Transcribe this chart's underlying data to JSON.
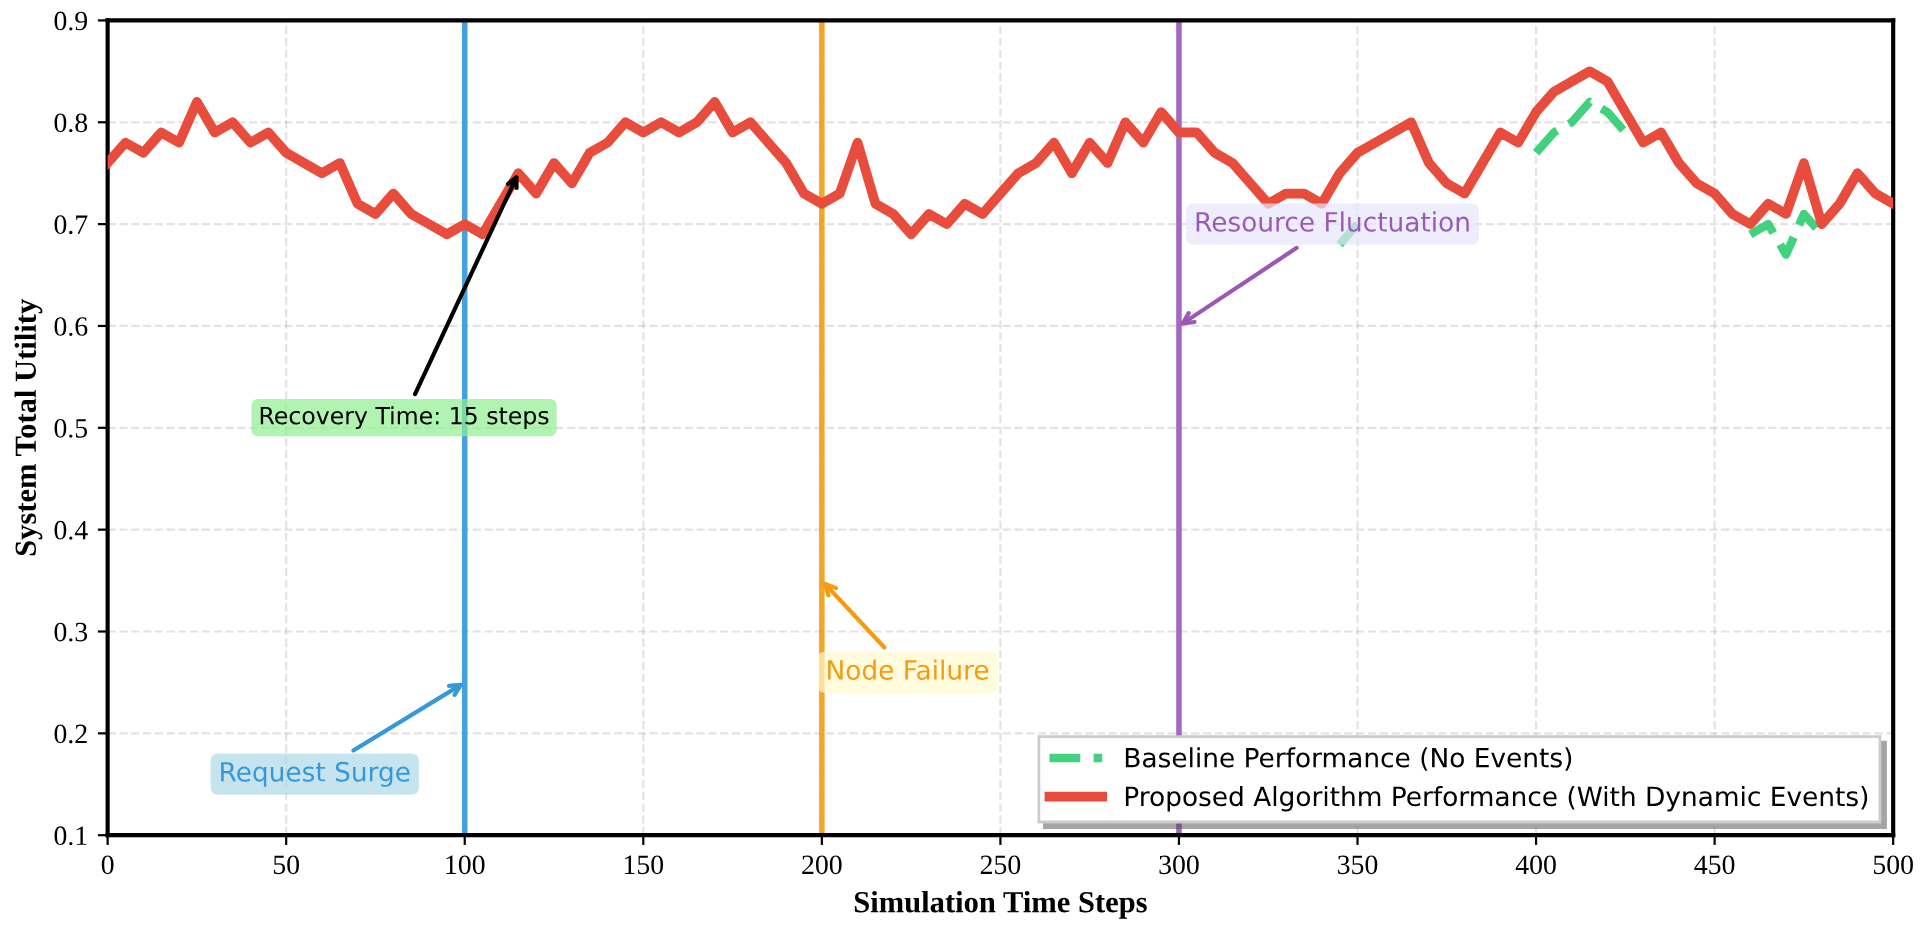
{
  "chart_data": {
    "type": "line",
    "xlabel": "Simulation Time Steps",
    "ylabel": "System Total Utility",
    "x": [
      0,
      5,
      10,
      15,
      20,
      25,
      30,
      35,
      40,
      45,
      50,
      55,
      60,
      65,
      70,
      75,
      80,
      85,
      90,
      95,
      100,
      105,
      110,
      115,
      120,
      125,
      130,
      135,
      140,
      145,
      150,
      155,
      160,
      165,
      170,
      175,
      180,
      185,
      190,
      195,
      200,
      205,
      210,
      215,
      220,
      225,
      230,
      235,
      240,
      245,
      250,
      255,
      260,
      265,
      270,
      275,
      280,
      285,
      290,
      295,
      300,
      305,
      310,
      315,
      320,
      325,
      330,
      335,
      340,
      345,
      350,
      355,
      360,
      365,
      370,
      375,
      380,
      385,
      390,
      395,
      400,
      405,
      410,
      415,
      420,
      425,
      430,
      435,
      440,
      445,
      450,
      455,
      460,
      465,
      470,
      475,
      480,
      485,
      490,
      495,
      500
    ],
    "series": [
      {
        "name": "Baseline Performance (No Events)",
        "color": "#2ecc71",
        "line_style": "dashed",
        "values": [
          null,
          null,
          null,
          null,
          null,
          null,
          null,
          null,
          null,
          null,
          null,
          null,
          null,
          null,
          null,
          null,
          null,
          null,
          null,
          null,
          null,
          null,
          null,
          null,
          null,
          null,
          null,
          null,
          null,
          null,
          null,
          null,
          null,
          null,
          null,
          null,
          null,
          null,
          null,
          null,
          null,
          null,
          null,
          null,
          null,
          null,
          null,
          null,
          null,
          null,
          null,
          null,
          null,
          null,
          null,
          null,
          null,
          null,
          null,
          null,
          null,
          null,
          null,
          null,
          null,
          null,
          null,
          null,
          null,
          0.68,
          0.7,
          null,
          null,
          null,
          null,
          null,
          null,
          null,
          null,
          null,
          0.77,
          0.79,
          0.8,
          0.82,
          0.81,
          0.79,
          null,
          null,
          null,
          null,
          null,
          null,
          0.69,
          0.7,
          0.67,
          0.71,
          0.69,
          null,
          null,
          null,
          null
        ]
      },
      {
        "name": "Proposed Algorithm Performance (With Dynamic Events)",
        "color": "#e74c3c",
        "line_style": "solid",
        "values": [
          0.76,
          0.78,
          0.77,
          0.79,
          0.78,
          0.82,
          0.79,
          0.8,
          0.78,
          0.79,
          0.77,
          0.76,
          0.75,
          0.76,
          0.72,
          0.71,
          0.73,
          0.71,
          0.7,
          0.69,
          0.7,
          0.69,
          0.72,
          0.75,
          0.73,
          0.76,
          0.74,
          0.77,
          0.78,
          0.8,
          0.79,
          0.8,
          0.79,
          0.8,
          0.82,
          0.79,
          0.8,
          0.78,
          0.76,
          0.73,
          0.72,
          0.73,
          0.78,
          0.72,
          0.71,
          0.69,
          0.71,
          0.7,
          0.72,
          0.71,
          0.73,
          0.75,
          0.76,
          0.78,
          0.75,
          0.78,
          0.76,
          0.8,
          0.78,
          0.81,
          0.79,
          0.79,
          0.77,
          0.76,
          0.74,
          0.72,
          0.73,
          0.73,
          0.72,
          0.75,
          0.77,
          0.78,
          0.79,
          0.8,
          0.76,
          0.74,
          0.73,
          0.76,
          0.79,
          0.78,
          0.81,
          0.83,
          0.84,
          0.85,
          0.84,
          0.81,
          0.78,
          0.79,
          0.76,
          0.74,
          0.73,
          0.71,
          0.7,
          0.72,
          0.71,
          0.76,
          0.7,
          0.72,
          0.75,
          0.73,
          0.72
        ]
      }
    ],
    "xlim": [
      0,
      500
    ],
    "xticks": [
      0,
      50,
      100,
      150,
      200,
      250,
      300,
      350,
      400,
      450,
      500
    ],
    "ylim": [
      0.1,
      0.9
    ],
    "yticks": [
      0.1,
      0.2,
      0.3,
      0.4,
      0.5,
      0.6,
      0.7,
      0.8,
      0.9
    ],
    "ref_lines": [
      {
        "axis": "x",
        "value": 100,
        "color": "#3498db"
      },
      {
        "axis": "x",
        "value": 200,
        "color": "#f39c12"
      },
      {
        "axis": "x",
        "value": 300,
        "color": "#9b59b6"
      }
    ],
    "annotations": [
      {
        "text": "Recovery Time: 15 steps",
        "x": 115,
        "y": 0.75
      },
      {
        "text": "Request Surge",
        "x": 100,
        "y": 0.25
      },
      {
        "text": "Node Failure",
        "x": 200,
        "y": 0.35
      },
      {
        "text": "Resource Fluctuation",
        "x": 300,
        "y": 0.6
      }
    ],
    "grid": true,
    "legend": "bottom right",
    "marker": "none"
  }
}
